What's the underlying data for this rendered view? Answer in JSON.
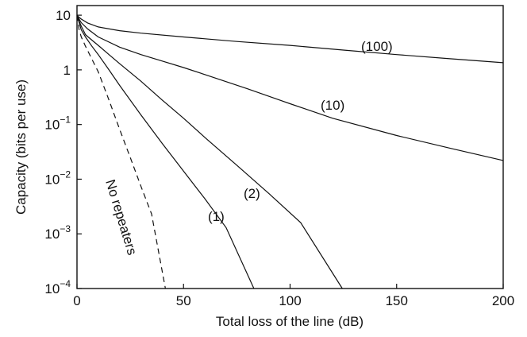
{
  "chart_data": {
    "type": "line",
    "xlabel": "Total loss of the line (dB)",
    "ylabel": "Capacity (bits per use)",
    "xlim": [
      0,
      200
    ],
    "ylim": [
      0.0001,
      15
    ],
    "yscale": "log",
    "grid": false,
    "x_ticks": [
      {
        "value": 0,
        "label": "0"
      },
      {
        "value": 50,
        "label": "50"
      },
      {
        "value": 100,
        "label": "100"
      },
      {
        "value": 150,
        "label": "150"
      },
      {
        "value": 200,
        "label": "200"
      }
    ],
    "y_ticks": [
      {
        "value": 10,
        "base": "10",
        "exp": ""
      },
      {
        "value": 1,
        "base": "1",
        "exp": ""
      },
      {
        "value": 0.1,
        "base": "10",
        "exp": "−1"
      },
      {
        "value": 0.01,
        "base": "10",
        "exp": "−2"
      },
      {
        "value": 0.001,
        "base": "10",
        "exp": "−3"
      },
      {
        "value": 0.0001,
        "base": "10",
        "exp": "−4"
      }
    ],
    "series": [
      {
        "name": "No repeaters",
        "style": "dashed",
        "x": [
          0,
          1,
          2,
          4,
          7,
          10,
          15,
          20,
          25,
          30,
          35,
          41.5
        ],
        "y": [
          10,
          5.4,
          4.0,
          2.7,
          1.57,
          0.92,
          0.28,
          0.082,
          0.025,
          0.0074,
          0.0023,
          0.0001
        ]
      },
      {
        "name": "(1)",
        "style": "solid",
        "x": [
          0,
          1,
          2,
          4,
          7,
          10,
          15,
          20,
          30,
          40,
          50,
          60,
          70,
          83
        ],
        "y": [
          10,
          7.3,
          5.4,
          4.0,
          2.7,
          1.9,
          1.0,
          0.52,
          0.15,
          0.045,
          0.014,
          0.0044,
          0.0013,
          0.0001
        ]
      },
      {
        "name": "(2)",
        "style": "solid",
        "x": [
          0,
          1,
          2,
          4,
          7,
          10,
          15,
          20,
          30,
          40,
          50,
          60,
          75,
          90,
          105,
          124.5
        ],
        "y": [
          10,
          7.8,
          6.3,
          4.4,
          3.5,
          2.8,
          1.9,
          1.3,
          0.62,
          0.28,
          0.13,
          0.058,
          0.018,
          0.0055,
          0.0016,
          0.0001
        ]
      },
      {
        "name": "(10)",
        "style": "solid",
        "x": [
          0,
          1,
          2,
          5,
          10,
          20,
          30,
          40,
          50,
          60,
          80,
          100,
          120,
          150,
          175,
          200
        ],
        "y": [
          10,
          8.5,
          7.3,
          5.6,
          4.0,
          2.6,
          1.9,
          1.45,
          1.1,
          0.82,
          0.45,
          0.24,
          0.13,
          0.063,
          0.037,
          0.022
        ]
      },
      {
        "name": "(100)",
        "style": "solid",
        "x": [
          0,
          1,
          2,
          5,
          10,
          20,
          30,
          50,
          75,
          100,
          125,
          150,
          175,
          200
        ],
        "y": [
          10,
          9.1,
          8.5,
          7.2,
          6.1,
          5.2,
          4.7,
          4.0,
          3.3,
          2.8,
          2.3,
          1.9,
          1.6,
          1.35
        ]
      }
    ]
  }
}
